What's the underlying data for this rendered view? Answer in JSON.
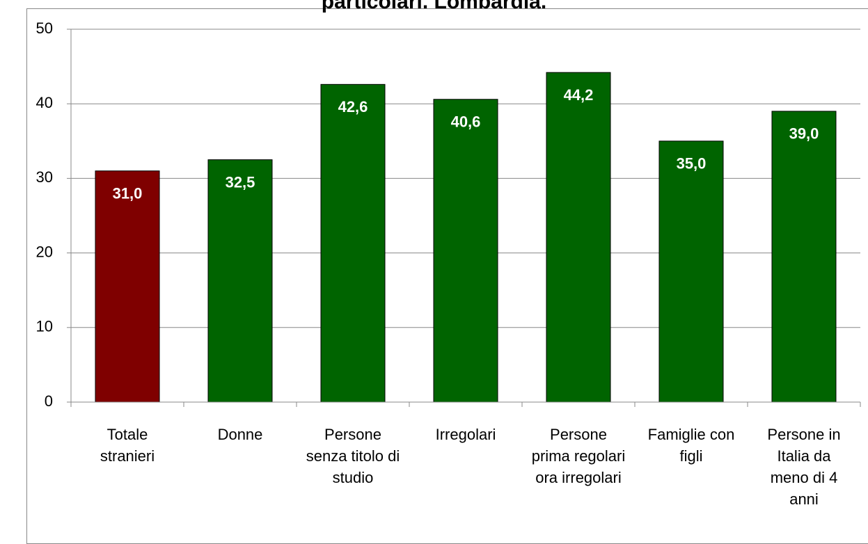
{
  "chart_data": {
    "type": "bar",
    "title": "particolari. Lombardia.",
    "categories": [
      "Totale stranieri",
      "Donne",
      "Persone senza titolo di studio",
      "Irregolari",
      "Persone prima regolari ora irregolari",
      "Famiglie con figli",
      "Persone in Italia da meno di 4 anni"
    ],
    "values": [
      31.0,
      32.5,
      42.6,
      40.6,
      44.2,
      35.0,
      39.0
    ],
    "value_labels": [
      "31,0",
      "32,5",
      "42,6",
      "40,6",
      "44,2",
      "35,0",
      "39,0"
    ],
    "colors": [
      "#7f0000",
      "#006400",
      "#006400",
      "#006400",
      "#006400",
      "#006400",
      "#006400"
    ],
    "ylim": [
      0,
      50
    ],
    "yticks": [
      0,
      10,
      20,
      30,
      40,
      50
    ],
    "grid": true
  }
}
